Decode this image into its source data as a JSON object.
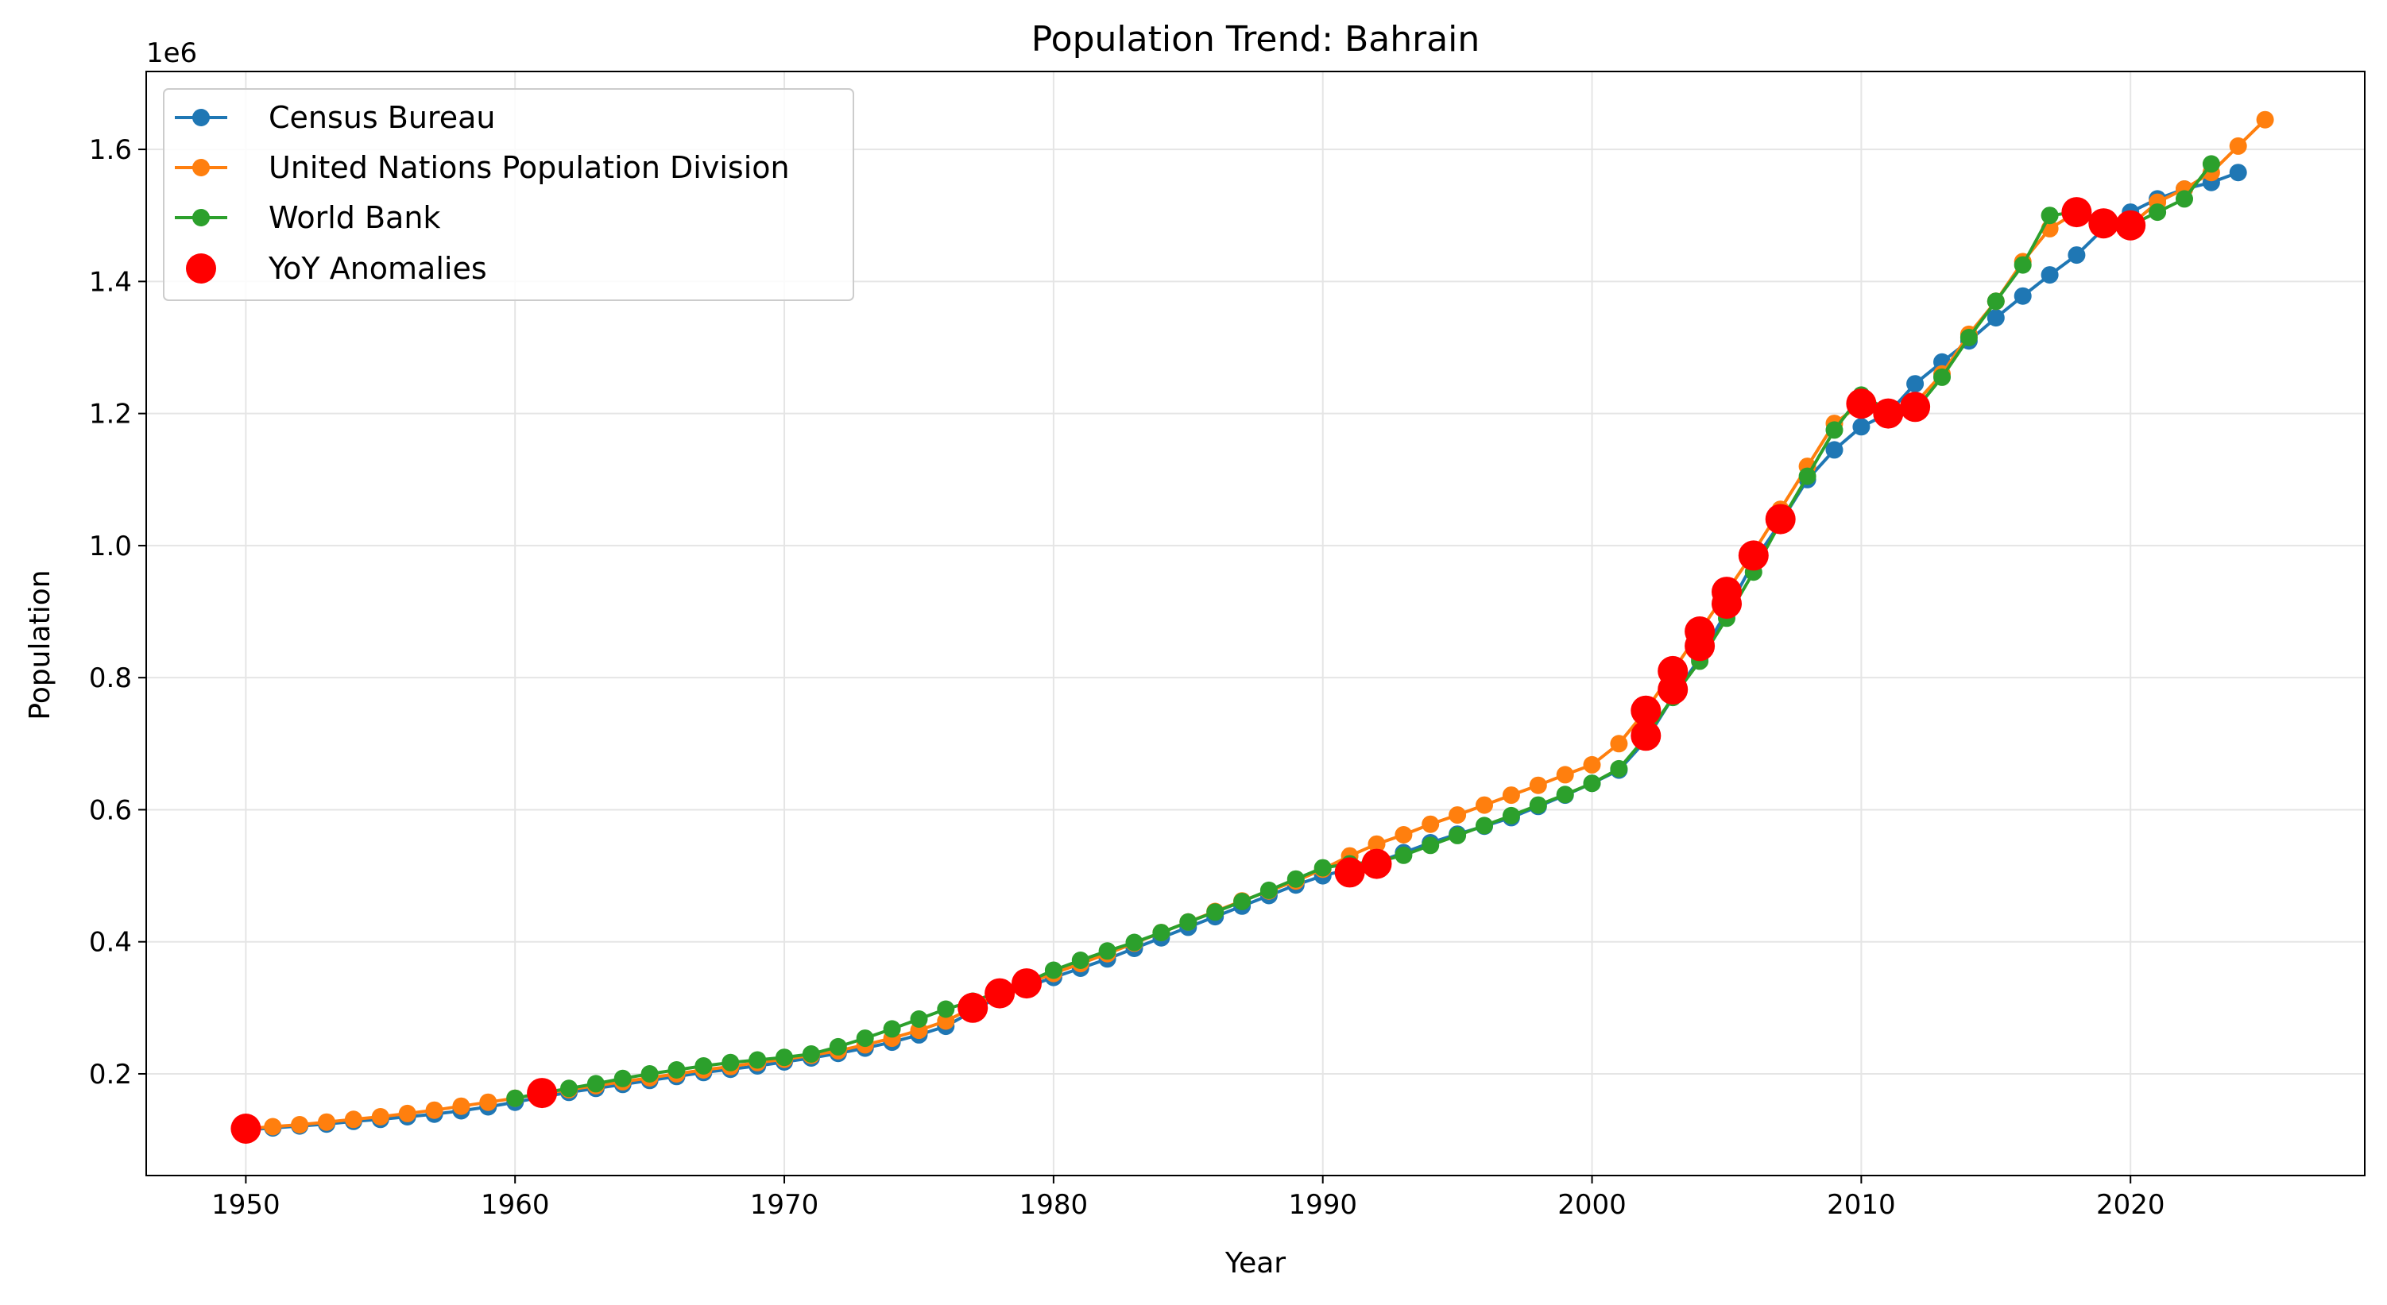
{
  "chart_data": {
    "type": "line",
    "title": "Population Trend: Bahrain",
    "xlabel": "Year",
    "ylabel": "Population",
    "y_offset_label": "1e6",
    "xlim": [
      1946.3,
      2028.7
    ],
    "ylim": [
      0.046,
      1.718
    ],
    "y_scale_factor": 1000000,
    "xticks": [
      1950,
      1960,
      1970,
      1980,
      1990,
      2000,
      2010,
      2020
    ],
    "yticks": [
      0.2,
      0.4,
      0.6,
      0.8,
      1.0,
      1.2,
      1.4,
      1.6
    ],
    "ytick_labels": [
      "0.2",
      "0.4",
      "0.6",
      "0.8",
      "1.0",
      "1.2",
      "1.4",
      "1.6"
    ],
    "grid": true,
    "legend_position": "upper-left",
    "series": [
      {
        "name": "Census Bureau",
        "color": "#1f77b4",
        "x": [
          1950,
          1951,
          1952,
          1953,
          1954,
          1955,
          1956,
          1957,
          1958,
          1959,
          1960,
          1961,
          1962,
          1963,
          1964,
          1965,
          1966,
          1967,
          1968,
          1969,
          1970,
          1971,
          1972,
          1973,
          1974,
          1975,
          1976,
          1977,
          1978,
          1979,
          1980,
          1981,
          1982,
          1983,
          1984,
          1985,
          1986,
          1987,
          1988,
          1989,
          1990,
          1991,
          1992,
          1993,
          1994,
          1995,
          1996,
          1997,
          1998,
          1999,
          2000,
          2001,
          2002,
          2003,
          2004,
          2005,
          2006,
          2007,
          2008,
          2009,
          2010,
          2011,
          2012,
          2013,
          2014,
          2015,
          2016,
          2017,
          2018,
          2019,
          2020,
          2021,
          2022,
          2023,
          2024
        ],
        "y": [
          0.115,
          0.118,
          0.121,
          0.124,
          0.128,
          0.131,
          0.135,
          0.139,
          0.144,
          0.15,
          0.157,
          0.165,
          0.172,
          0.178,
          0.184,
          0.19,
          0.196,
          0.202,
          0.207,
          0.212,
          0.218,
          0.224,
          0.231,
          0.239,
          0.248,
          0.259,
          0.272,
          0.295,
          0.318,
          0.332,
          0.346,
          0.36,
          0.374,
          0.39,
          0.406,
          0.422,
          0.438,
          0.454,
          0.47,
          0.486,
          0.5,
          0.51,
          0.52,
          0.535,
          0.55,
          0.563,
          0.575,
          0.588,
          0.605,
          0.622,
          0.64,
          0.66,
          0.705,
          0.77,
          0.83,
          0.9,
          0.975,
          1.035,
          1.1,
          1.145,
          1.18,
          1.2,
          1.245,
          1.278,
          1.31,
          1.345,
          1.378,
          1.41,
          1.44,
          1.48,
          1.505,
          1.525,
          1.54,
          1.55,
          1.565
        ]
      },
      {
        "name": "United Nations Population Division",
        "color": "#ff7f0e",
        "x": [
          1950,
          1951,
          1952,
          1953,
          1954,
          1955,
          1956,
          1957,
          1958,
          1959,
          1960,
          1961,
          1962,
          1963,
          1964,
          1965,
          1966,
          1967,
          1968,
          1969,
          1970,
          1971,
          1972,
          1973,
          1974,
          1975,
          1976,
          1977,
          1978,
          1979,
          1980,
          1981,
          1982,
          1983,
          1984,
          1985,
          1986,
          1987,
          1988,
          1989,
          1990,
          1991,
          1992,
          1993,
          1994,
          1995,
          1996,
          1997,
          1998,
          1999,
          2000,
          2001,
          2002,
          2003,
          2004,
          2005,
          2006,
          2007,
          2008,
          2009,
          2010,
          2011,
          2012,
          2013,
          2014,
          2015,
          2016,
          2017,
          2018,
          2019,
          2020,
          2021,
          2022,
          2023,
          2024,
          2025
        ],
        "y": [
          0.117,
          0.12,
          0.123,
          0.127,
          0.131,
          0.135,
          0.14,
          0.145,
          0.151,
          0.157,
          0.163,
          0.17,
          0.176,
          0.182,
          0.188,
          0.194,
          0.2,
          0.206,
          0.211,
          0.217,
          0.222,
          0.228,
          0.235,
          0.244,
          0.254,
          0.266,
          0.28,
          0.3,
          0.322,
          0.337,
          0.352,
          0.367,
          0.382,
          0.398,
          0.414,
          0.43,
          0.446,
          0.462,
          0.477,
          0.492,
          0.51,
          0.53,
          0.548,
          0.562,
          0.578,
          0.592,
          0.607,
          0.622,
          0.637,
          0.653,
          0.668,
          0.7,
          0.75,
          0.81,
          0.87,
          0.93,
          0.99,
          1.055,
          1.12,
          1.185,
          1.215,
          1.2,
          1.215,
          1.26,
          1.32,
          1.37,
          1.43,
          1.48,
          1.505,
          1.49,
          1.485,
          1.52,
          1.54,
          1.565,
          1.605,
          1.645
        ]
      },
      {
        "name": "World Bank",
        "color": "#2ca02c",
        "x": [
          1960,
          1961,
          1962,
          1963,
          1964,
          1965,
          1966,
          1967,
          1968,
          1969,
          1970,
          1971,
          1972,
          1973,
          1974,
          1975,
          1976,
          1977,
          1978,
          1979,
          1980,
          1981,
          1982,
          1983,
          1984,
          1985,
          1986,
          1987,
          1988,
          1989,
          1990,
          1991,
          1992,
          1993,
          1994,
          1995,
          1996,
          1997,
          1998,
          1999,
          2000,
          2001,
          2002,
          2003,
          2004,
          2005,
          2006,
          2007,
          2008,
          2009,
          2010,
          2011,
          2012,
          2013,
          2014,
          2015,
          2016,
          2017,
          2018,
          2019,
          2020,
          2021,
          2022,
          2023
        ],
        "y": [
          0.163,
          0.171,
          0.178,
          0.185,
          0.193,
          0.2,
          0.206,
          0.212,
          0.217,
          0.221,
          0.225,
          0.23,
          0.241,
          0.254,
          0.268,
          0.283,
          0.298,
          0.31,
          0.324,
          0.339,
          0.357,
          0.372,
          0.386,
          0.399,
          0.414,
          0.43,
          0.445,
          0.461,
          0.478,
          0.495,
          0.512,
          0.518,
          0.521,
          0.531,
          0.546,
          0.561,
          0.576,
          0.591,
          0.607,
          0.623,
          0.64,
          0.662,
          0.71,
          0.77,
          0.825,
          0.89,
          0.96,
          1.035,
          1.105,
          1.175,
          1.228,
          1.205,
          1.205,
          1.255,
          1.315,
          1.37,
          1.425,
          1.5,
          1.505,
          1.49,
          1.485,
          1.505,
          1.525,
          1.578
        ]
      }
    ],
    "anomalies": {
      "name": "YoY Anomalies",
      "color": "#ff0000",
      "x": [
        1950,
        1961,
        1977,
        1978,
        1979,
        1991,
        1992,
        2002,
        2002,
        2003,
        2003,
        2004,
        2004,
        2005,
        2005,
        2006,
        2007,
        2010,
        2011,
        2012,
        2018,
        2019,
        2020
      ],
      "y": [
        0.117,
        0.171,
        0.3,
        0.322,
        0.337,
        0.505,
        0.518,
        0.75,
        0.712,
        0.81,
        0.782,
        0.87,
        0.848,
        0.93,
        0.912,
        0.985,
        1.04,
        1.215,
        1.2,
        1.21,
        1.505,
        1.488,
        1.485
      ]
    }
  }
}
